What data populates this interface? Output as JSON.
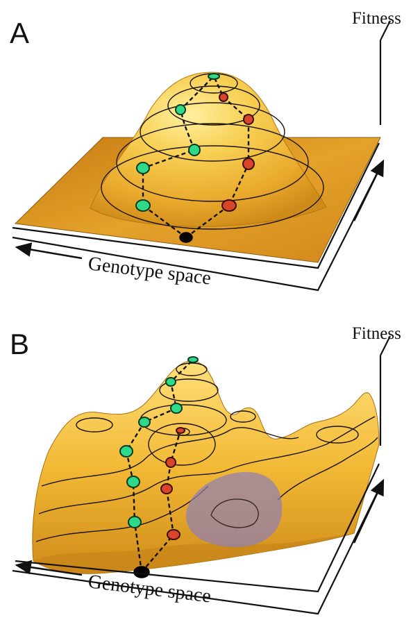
{
  "panels": [
    {
      "letter": "A",
      "axis_fitness": "Fitness",
      "axis_genotype": "Genotype space",
      "landscape": "single smooth peak",
      "paths": [
        {
          "color": "green",
          "steps": 6
        },
        {
          "color": "red",
          "steps": 5
        }
      ]
    },
    {
      "letter": "B",
      "axis_fitness": "Fitness",
      "axis_genotype": "Genotype space",
      "landscape": "rugged multi-peak",
      "paths": [
        {
          "color": "green",
          "steps": 7
        },
        {
          "color": "red",
          "steps": 4
        }
      ]
    }
  ],
  "colors": {
    "surface_light": "#f7c94a",
    "surface_dark": "#d58d16",
    "green_node": "#2fd98a",
    "red_node": "#d9452a",
    "start_node": "#050505",
    "basin": "#8f7fb8"
  }
}
